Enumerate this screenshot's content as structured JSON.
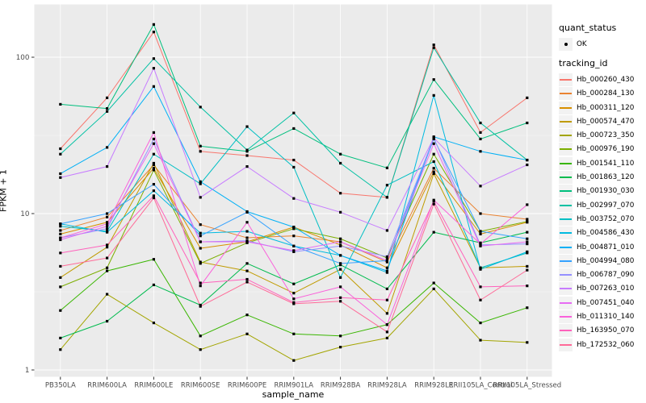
{
  "chart_data": {
    "type": "line",
    "xlabel": "sample_name",
    "ylabel": "FPKM + 1",
    "y_scale": "log10",
    "y_ticks": [
      1,
      10,
      100
    ],
    "y_minor_ticks": [
      3.162,
      31.62
    ],
    "ylim": [
      0.91,
      216
    ],
    "grid": true,
    "legend_position": "right",
    "panel_bg": "#EBEBEB",
    "grid_major_color": "#FFFFFF",
    "grid_minor_color": "#FFFFFF",
    "marker_color": "#000000",
    "tick_text_color": "#4D4D4D",
    "categories": [
      "PB350LA",
      "RRIM600LA",
      "RRIM600LE",
      "RRIM600SE",
      "RRIM600PE",
      "RRIM901LA",
      "RRIM928BA",
      "RRIM928LA",
      "RRIM928LE",
      "RRII105LA_Control",
      "RRII105LA_Stressed"
    ],
    "legend": {
      "quant_status_title": "quant_status",
      "quant_status_items": [
        {
          "label": "OK",
          "marker": "black-point"
        }
      ],
      "tracking_id_title": "tracking_id"
    },
    "series": [
      {
        "tracking_id": "Hb_000260_430",
        "color": "#F8766D",
        "values": [
          26,
          55,
          145,
          25,
          23.5,
          22,
          13.5,
          12.7,
          120,
          33,
          55
        ]
      },
      {
        "tracking_id": "Hb_000284_130",
        "color": "#EA8331",
        "values": [
          7.8,
          9.5,
          20.5,
          8.5,
          7.0,
          7.2,
          6.6,
          4.9,
          19.5,
          10,
          9.2
        ]
      },
      {
        "tracking_id": "Hb_000311_120",
        "color": "#D89000",
        "values": [
          7.4,
          8.8,
          19.5,
          6.0,
          6.6,
          8.2,
          6.3,
          4.5,
          18.5,
          7.4,
          8.8
        ]
      },
      {
        "tracking_id": "Hb_000574_470",
        "color": "#C09B00",
        "values": [
          3.9,
          6.1,
          21,
          4.9,
          4.3,
          3.1,
          4.4,
          2.3,
          18,
          4.5,
          4.6
        ]
      },
      {
        "tracking_id": "Hb_000723_350",
        "color": "#A3A500",
        "values": [
          1.35,
          3.05,
          2.0,
          1.35,
          1.7,
          1.15,
          1.4,
          1.6,
          3.3,
          1.55,
          1.5
        ]
      },
      {
        "tracking_id": "Hb_000976_190",
        "color": "#7CAE00",
        "values": [
          3.4,
          4.5,
          19,
          4.8,
          6.5,
          8.0,
          6.9,
          5.2,
          24,
          7.7,
          8.9
        ]
      },
      {
        "tracking_id": "Hb_001541_110",
        "color": "#39B600",
        "values": [
          2.4,
          4.3,
          5.1,
          1.65,
          2.25,
          1.7,
          1.65,
          1.95,
          3.6,
          2.0,
          2.5
        ]
      },
      {
        "tracking_id": "Hb_001863_120",
        "color": "#00BB4E",
        "values": [
          1.6,
          2.05,
          3.5,
          2.6,
          4.8,
          3.55,
          4.7,
          3.3,
          7.6,
          6.5,
          7.6
        ]
      },
      {
        "tracking_id": "Hb_001930_030",
        "color": "#00BF7D",
        "values": [
          50,
          47,
          162,
          27,
          25,
          35,
          24,
          19.6,
          72,
          30,
          38
        ]
      },
      {
        "tracking_id": "Hb_002997_070",
        "color": "#00C1A3",
        "values": [
          24,
          45,
          98,
          48,
          25.5,
          44,
          21,
          12.7,
          115,
          38,
          22
        ]
      },
      {
        "tracking_id": "Hb_003752_070",
        "color": "#00BFC4",
        "values": [
          8.3,
          7.7,
          24,
          15.5,
          36,
          19.8,
          3.9,
          15.2,
          21.5,
          4.5,
          5.6
        ]
      },
      {
        "tracking_id": "Hb_004586_430",
        "color": "#00BAE0",
        "values": [
          8.6,
          7.6,
          14,
          7.5,
          7.7,
          6.2,
          5.4,
          4.2,
          57,
          4.4,
          5.7
        ]
      },
      {
        "tracking_id": "Hb_004871_010",
        "color": "#00B0F6",
        "values": [
          18,
          26.5,
          65,
          16,
          10.3,
          8.2,
          5.4,
          4.3,
          31,
          25,
          22
        ]
      },
      {
        "tracking_id": "Hb_004994_080",
        "color": "#35A2FF",
        "values": [
          8.6,
          10,
          15.4,
          7.2,
          10.2,
          6.2,
          4.8,
          5.0,
          30,
          7.7,
          6.9
        ]
      },
      {
        "tracking_id": "Hb_006787_090",
        "color": "#9590FF",
        "values": [
          7.0,
          8.0,
          30,
          6.6,
          6.7,
          5.7,
          6.2,
          5.3,
          30.5,
          6.3,
          6.4
        ]
      },
      {
        "tracking_id": "Hb_007263_010",
        "color": "#C77CFF",
        "values": [
          17,
          20,
          85,
          12.7,
          20,
          12.5,
          10.2,
          7.8,
          30.5,
          15,
          20.5
        ]
      },
      {
        "tracking_id": "Hb_007451_040",
        "color": "#E76BF3",
        "values": [
          6.8,
          8.3,
          28,
          6.6,
          6.6,
          5.8,
          6.6,
          5.0,
          28,
          6.2,
          6.6
        ]
      },
      {
        "tracking_id": "Hb_011310_140",
        "color": "#FA62DB",
        "values": [
          7.0,
          8.6,
          33,
          3.45,
          8.8,
          2.85,
          3.4,
          1.95,
          12.2,
          6.4,
          11.4
        ]
      },
      {
        "tracking_id": "Hb_163950_070",
        "color": "#FF62BC",
        "values": [
          5.6,
          6.3,
          13,
          3.6,
          3.8,
          2.7,
          2.9,
          2.8,
          12,
          3.4,
          3.45
        ]
      },
      {
        "tracking_id": "Hb_172532_060",
        "color": "#FF6A98",
        "values": [
          4.6,
          5.2,
          12.6,
          2.55,
          3.65,
          2.65,
          2.75,
          1.75,
          11.5,
          2.8,
          4.35
        ]
      }
    ]
  }
}
